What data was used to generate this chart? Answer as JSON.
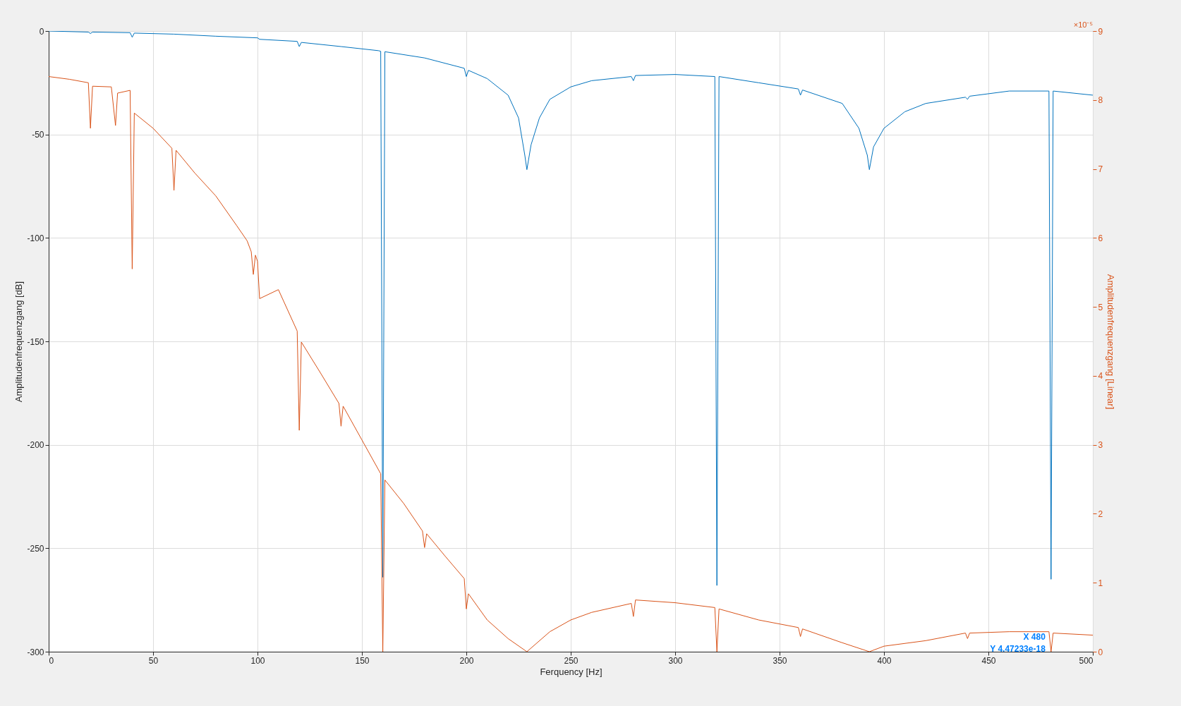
{
  "chart_data": {
    "type": "line",
    "xlabel": "Ferquency [Hz]",
    "ylabel": "Amplitudenfrequenzgang [dB]",
    "y2label": "Amplitudenfrequenzgang [Linear]",
    "xlim": [
      0,
      500
    ],
    "xticks": [
      0,
      50,
      100,
      150,
      200,
      250,
      300,
      350,
      400,
      450,
      500
    ],
    "ylim": [
      -300,
      0
    ],
    "yticks": [
      -300,
      -250,
      -200,
      -150,
      -100,
      -50,
      0
    ],
    "y2lim": [
      0,
      9
    ],
    "y2ticks": [
      0,
      1,
      2,
      3,
      4,
      5,
      6,
      7,
      8,
      9
    ],
    "grid": true,
    "annotations": [
      "×10⁻⁵",
      {
        "text": "X 480\nY 4.47233e-18",
        "x": 480,
        "y": -300
      }
    ],
    "series": [
      {
        "color": "#0072bd",
        "x": [
          0,
          19,
          20,
          21,
          39,
          40,
          41,
          60,
          80,
          100,
          101,
          119,
          120,
          121,
          140,
          158,
          159,
          160,
          161,
          180,
          199,
          200,
          201,
          210,
          220,
          225,
          228,
          229,
          231,
          235,
          240,
          250,
          260,
          279,
          280,
          281,
          300,
          319,
          320,
          321,
          340,
          359,
          360,
          361,
          380,
          388,
          392,
          393,
          395,
          400,
          410,
          420,
          439,
          440,
          441,
          460,
          479,
          480,
          481,
          500
        ],
        "values": [
          0,
          -0.5,
          -1.2,
          -0.5,
          -0.8,
          -3,
          -1,
          -1.5,
          -2.5,
          -3.3,
          -4,
          -5,
          -7.5,
          -5.5,
          -7.5,
          -9.5,
          -9.8,
          -264,
          -10,
          -13,
          -18,
          -22,
          -19,
          -23,
          -31,
          -42,
          -60,
          -67,
          -55,
          -42,
          -33,
          -27,
          -24,
          -22,
          -24,
          -21.5,
          -21,
          -22,
          -268,
          -22,
          -25,
          -28,
          -31,
          -28.5,
          -35,
          -47,
          -60,
          -67,
          -56,
          -47,
          -39,
          -35,
          -32,
          -33,
          -31.5,
          -29,
          -29,
          -265,
          -29,
          -31
        ]
      },
      {
        "color": "#d95319",
        "axis": "y2",
        "x": [
          0,
          10,
          19,
          20,
          21,
          30,
          32,
          33,
          39,
          40,
          41,
          50,
          59,
          60,
          61,
          70,
          80,
          90,
          95,
          97,
          98,
          99,
          100,
          101,
          110,
          119,
          120,
          121,
          130,
          139,
          140,
          141,
          150,
          159,
          160,
          161,
          170,
          179,
          180,
          181,
          190,
          199,
          200,
          201,
          210,
          220,
          229,
          240,
          250,
          260,
          279,
          280,
          281,
          300,
          319,
          320,
          321,
          340,
          359,
          360,
          361,
          380,
          393,
          400,
          420,
          439,
          440,
          441,
          460,
          479,
          480,
          481,
          500
        ],
        "values": [
          8.34,
          8.3,
          8.25,
          7.59,
          8.2,
          8.19,
          7.63,
          8.1,
          8.14,
          5.55,
          7.81,
          7.59,
          7.3,
          6.69,
          7.27,
          6.94,
          6.61,
          6.18,
          5.96,
          5.8,
          5.47,
          5.75,
          5.66,
          5.12,
          5.25,
          4.65,
          3.21,
          4.49,
          4.05,
          3.6,
          3.27,
          3.56,
          3.07,
          2.58,
          0,
          2.49,
          2.15,
          1.75,
          1.51,
          1.71,
          1.38,
          1.06,
          0.62,
          0.84,
          0.46,
          0.19,
          0,
          0.29,
          0.46,
          0.57,
          0.7,
          0.51,
          0.75,
          0.71,
          0.64,
          0,
          0.62,
          0.46,
          0.35,
          0.22,
          0.33,
          0.13,
          0,
          0.08,
          0.16,
          0.27,
          0.19,
          0.27,
          0.29,
          0.29,
          0,
          0.27,
          0.24
        ]
      }
    ]
  }
}
